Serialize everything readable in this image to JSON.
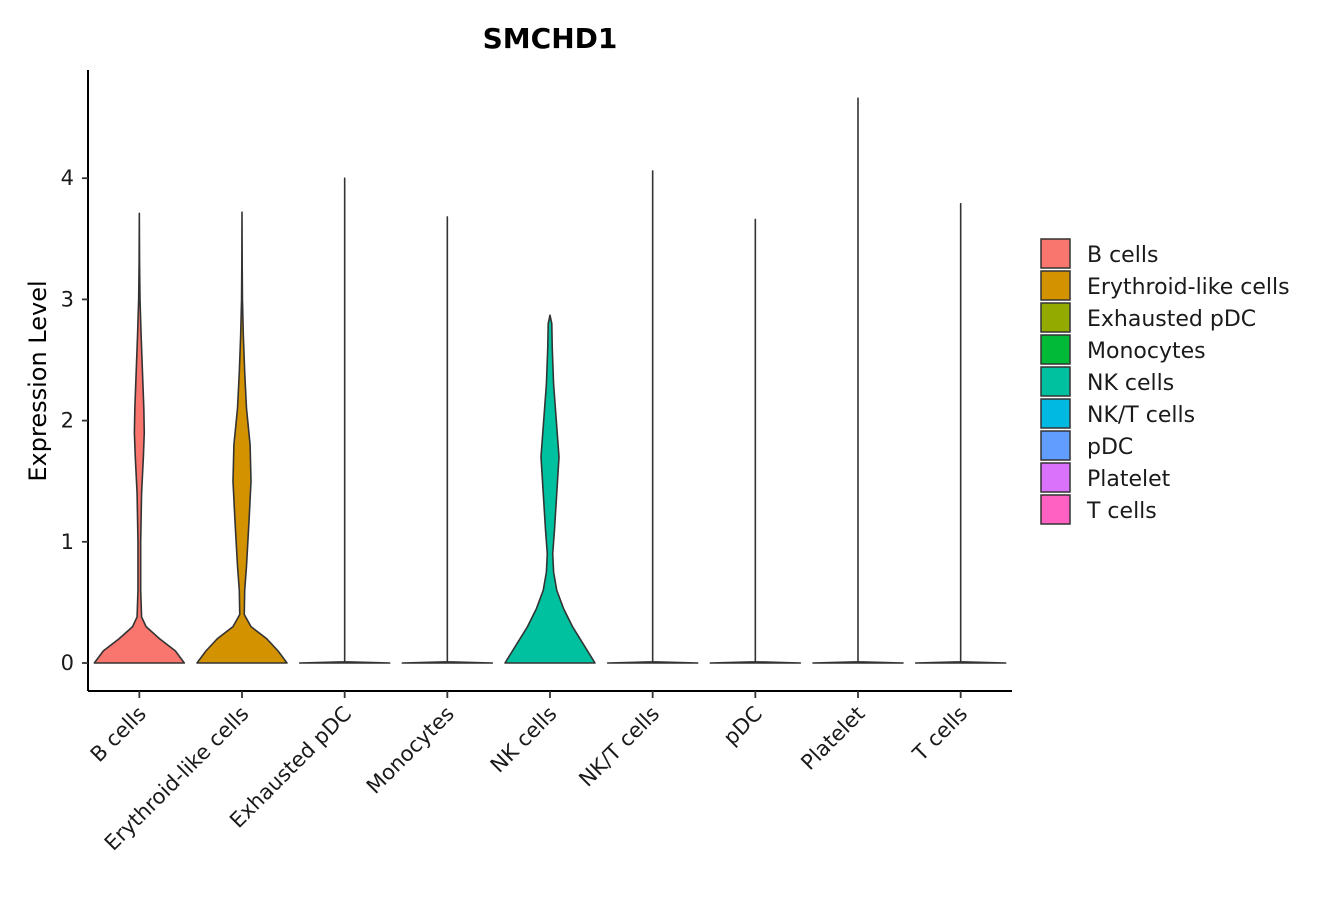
{
  "chart_data": {
    "type": "violin",
    "title": "SMCHD1",
    "xlabel": "",
    "ylabel": "Expression Level",
    "ylim": [
      -0.22,
      4.9
    ],
    "yticks": [
      "0",
      "1",
      "2",
      "3",
      "4"
    ],
    "grid": false,
    "legend_position": "right",
    "categories": [
      "B cells",
      "Erythroid-like cells",
      "Exhausted pDC",
      "Monocytes",
      "NK cells",
      "NK/T cells",
      "pDC",
      "Platelet",
      "T cells"
    ],
    "colors": [
      "#F8766D",
      "#D39200",
      "#93AA00",
      "#00BA38",
      "#00C19F",
      "#00B9E3",
      "#619CFF",
      "#DB72FB",
      "#FF61C3"
    ],
    "max_values": [
      3.71,
      3.72,
      4.0,
      3.68,
      2.87,
      4.06,
      3.66,
      4.66,
      3.79
    ],
    "density_profiles": [
      [
        [
          0,
          1.0
        ],
        [
          0.1,
          0.8
        ],
        [
          0.2,
          0.45
        ],
        [
          0.3,
          0.15
        ],
        [
          0.38,
          0.05
        ],
        [
          0.6,
          0.03
        ],
        [
          1.0,
          0.03
        ],
        [
          1.4,
          0.05
        ],
        [
          1.7,
          0.09
        ],
        [
          1.9,
          0.11
        ],
        [
          2.1,
          0.1
        ],
        [
          2.4,
          0.07
        ],
        [
          2.7,
          0.04
        ],
        [
          3.0,
          0.015
        ],
        [
          3.3,
          0.005
        ],
        [
          3.71,
          0.0
        ]
      ],
      [
        [
          0,
          1.0
        ],
        [
          0.1,
          0.8
        ],
        [
          0.2,
          0.55
        ],
        [
          0.3,
          0.2
        ],
        [
          0.4,
          0.05
        ],
        [
          0.6,
          0.06
        ],
        [
          0.8,
          0.1
        ],
        [
          1.0,
          0.13
        ],
        [
          1.2,
          0.16
        ],
        [
          1.5,
          0.2
        ],
        [
          1.8,
          0.18
        ],
        [
          2.1,
          0.1
        ],
        [
          2.4,
          0.06
        ],
        [
          2.7,
          0.03
        ],
        [
          3.0,
          0.01
        ],
        [
          3.3,
          0.004
        ],
        [
          3.72,
          0.0
        ]
      ],
      [
        [
          0,
          1.0
        ],
        [
          0.01,
          0.0
        ],
        [
          4.0,
          0.0
        ]
      ],
      [
        [
          0,
          1.0
        ],
        [
          0.01,
          0.0
        ],
        [
          3.68,
          0.0
        ]
      ],
      [
        [
          0,
          1.0
        ],
        [
          0.15,
          0.75
        ],
        [
          0.3,
          0.5
        ],
        [
          0.45,
          0.3
        ],
        [
          0.6,
          0.15
        ],
        [
          0.75,
          0.08
        ],
        [
          0.9,
          0.06
        ],
        [
          1.1,
          0.1
        ],
        [
          1.4,
          0.15
        ],
        [
          1.7,
          0.2
        ],
        [
          2.0,
          0.14
        ],
        [
          2.3,
          0.08
        ],
        [
          2.6,
          0.05
        ],
        [
          2.8,
          0.04
        ],
        [
          2.87,
          0.0
        ]
      ],
      [
        [
          0,
          1.0
        ],
        [
          0.01,
          0.0
        ],
        [
          4.06,
          0.0
        ]
      ],
      [
        [
          0,
          1.0
        ],
        [
          0.01,
          0.0
        ],
        [
          3.66,
          0.0
        ]
      ],
      [
        [
          0,
          1.0
        ],
        [
          0.01,
          0.0
        ],
        [
          4.66,
          0.0
        ]
      ],
      [
        [
          0,
          1.0
        ],
        [
          0.01,
          0.0
        ],
        [
          3.79,
          0.0
        ]
      ]
    ]
  }
}
